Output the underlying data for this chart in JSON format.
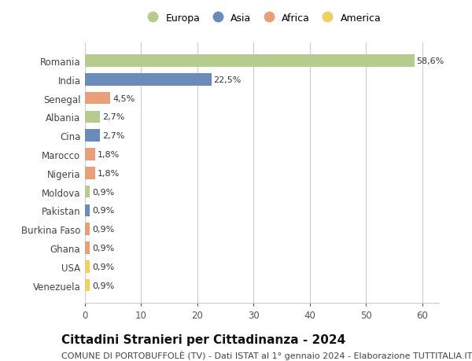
{
  "countries": [
    "Romania",
    "India",
    "Senegal",
    "Albania",
    "Cina",
    "Marocco",
    "Nigeria",
    "Moldova",
    "Pakistan",
    "Burkina Faso",
    "Ghana",
    "USA",
    "Venezuela"
  ],
  "values": [
    58.6,
    22.5,
    4.5,
    2.7,
    2.7,
    1.8,
    1.8,
    0.9,
    0.9,
    0.9,
    0.9,
    0.9,
    0.9
  ],
  "labels": [
    "58,6%",
    "22,5%",
    "4,5%",
    "2,7%",
    "2,7%",
    "1,8%",
    "1,8%",
    "0,9%",
    "0,9%",
    "0,9%",
    "0,9%",
    "0,9%",
    "0,9%"
  ],
  "continents": [
    "Europa",
    "Asia",
    "Africa",
    "Europa",
    "Asia",
    "Africa",
    "Africa",
    "Europa",
    "Asia",
    "Africa",
    "Africa",
    "America",
    "America"
  ],
  "continent_colors": {
    "Europa": "#b5cc8e",
    "Asia": "#6b8cba",
    "Africa": "#e8a07a",
    "America": "#f0d060"
  },
  "legend_order": [
    "Europa",
    "Asia",
    "Africa",
    "America"
  ],
  "legend_colors": [
    "#b5cc8e",
    "#6b8cba",
    "#e8a07a",
    "#f0d060"
  ],
  "xlim": [
    0,
    63
  ],
  "xticks": [
    0,
    10,
    20,
    30,
    40,
    50,
    60
  ],
  "title": "Cittadini Stranieri per Cittadinanza - 2024",
  "subtitle": "COMUNE DI PORTOBUFFOLÈ (TV) - Dati ISTAT al 1° gennaio 2024 - Elaborazione TUTTITALIA.IT",
  "bg_color": "#ffffff",
  "grid_color": "#cccccc",
  "bar_height": 0.65,
  "title_fontsize": 11,
  "subtitle_fontsize": 8,
  "label_fontsize": 8,
  "tick_fontsize": 8.5,
  "legend_fontsize": 9
}
